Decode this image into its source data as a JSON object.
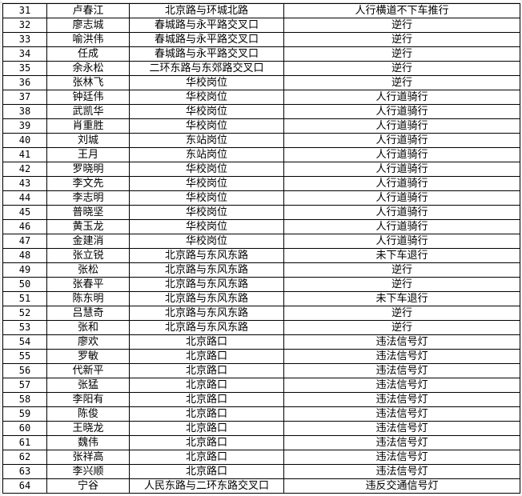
{
  "table": {
    "rows": [
      [
        "31",
        "卢春江",
        "北京路与环城北路",
        "人行横道不下车推行"
      ],
      [
        "32",
        "廖志城",
        "春城路与永平路交叉口",
        "逆行"
      ],
      [
        "33",
        "喻洪伟",
        "春城路与永平路交叉口",
        "逆行"
      ],
      [
        "34",
        "任成",
        "春城路与永平路交叉口",
        "逆行"
      ],
      [
        "35",
        "余永松",
        "二环东路与东郊路交叉口",
        "逆行"
      ],
      [
        "36",
        "张林飞",
        "华校岗位",
        "逆行"
      ],
      [
        "37",
        "钟廷伟",
        "华校岗位",
        "人行道骑行"
      ],
      [
        "38",
        "武凯华",
        "华校岗位",
        "人行道骑行"
      ],
      [
        "39",
        "肖重胜",
        "华校岗位",
        "人行道骑行"
      ],
      [
        "40",
        "刘城",
        "东站岗位",
        "人行道骑行"
      ],
      [
        "41",
        "王月",
        "东站岗位",
        "人行道骑行"
      ],
      [
        "42",
        "罗晓明",
        "华校岗位",
        "人行道骑行"
      ],
      [
        "43",
        "李文先",
        "华校岗位",
        "人行道骑行"
      ],
      [
        "44",
        "李志明",
        "华校岗位",
        "人行道骑行"
      ],
      [
        "45",
        "普晓坚",
        "华校岗位",
        "人行道骑行"
      ],
      [
        "46",
        "黄玉龙",
        "华校岗位",
        "人行道骑行"
      ],
      [
        "47",
        "金建消",
        "华校岗位",
        "人行道骑行"
      ],
      [
        "48",
        "张立锐",
        "北京路与东风东路",
        "未下车退行"
      ],
      [
        "49",
        "张松",
        "北京路与东风东路",
        "逆行"
      ],
      [
        "50",
        "张春平",
        "北京路与东风东路",
        "逆行"
      ],
      [
        "51",
        "陈东明",
        "北京路与东风东路",
        "未下车退行"
      ],
      [
        "52",
        "吕慧奇",
        "北京路与东风东路",
        "逆行"
      ],
      [
        "53",
        "张和",
        "北京路与东风东路",
        "逆行"
      ],
      [
        "54",
        "廖欢",
        "北京路口",
        "违法信号灯"
      ],
      [
        "55",
        "罗敏",
        "北京路口",
        "违法信号灯"
      ],
      [
        "56",
        "代新平",
        "北京路口",
        "违法信号灯"
      ],
      [
        "57",
        "张猛",
        "北京路口",
        "违法信号灯"
      ],
      [
        "58",
        "李阳有",
        "北京路口",
        "违法信号灯"
      ],
      [
        "59",
        "陈俊",
        "北京路口",
        "违法信号灯"
      ],
      [
        "60",
        "王晓龙",
        "北京路口",
        "违法信号灯"
      ],
      [
        "61",
        "魏伟",
        "北京路口",
        "违法信号灯"
      ],
      [
        "62",
        "张祥高",
        "北京路口",
        "违法信号灯"
      ],
      [
        "63",
        "李兴顺",
        "北京路口",
        "违法信号灯"
      ],
      [
        "64",
        "宁谷",
        "人民东路与二环东路交叉口",
        "违反交通信号灯"
      ]
    ]
  }
}
